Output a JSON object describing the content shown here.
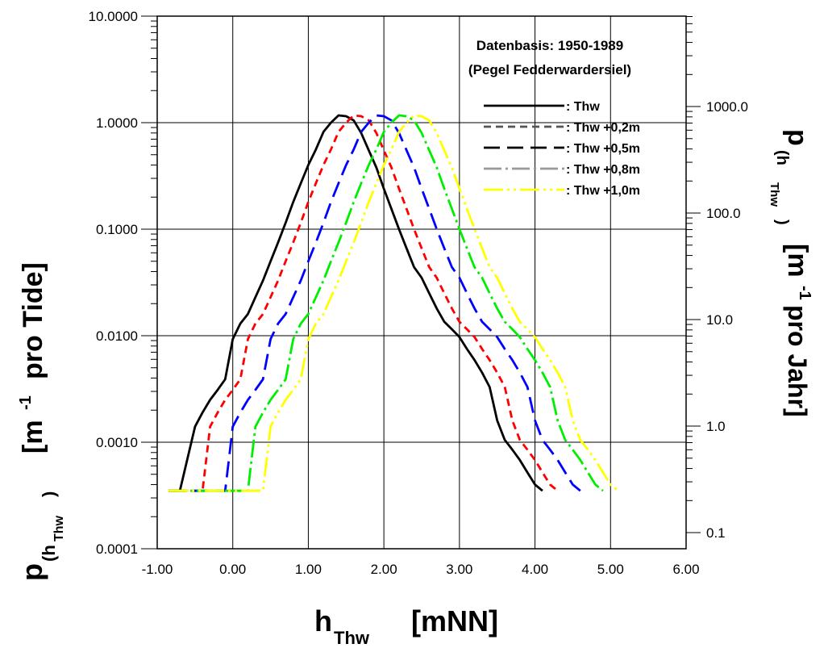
{
  "chart_data": {
    "type": "line",
    "annotation": [
      "Datenbasis: 1950-1989",
      "(Pegel Fedderwardersiel)"
    ],
    "xlabel": "h",
    "xlabel_sub": "Thw",
    "xlabel_unit": "[mNN]",
    "ylabel": "p",
    "ylabel_sub": "(h",
    "ylabel_sub2": "Thw",
    "ylabel_close": ")",
    "ylabel_unit": "[m",
    "ylabel_exp": "-1",
    "ylabel_tail": "pro Tide]",
    "y2label": "p",
    "y2label_sub": "(h",
    "y2label_sub2": "Thw",
    "y2label_close": ")",
    "y2label_unit": "[m",
    "y2label_exp": "-1",
    "y2label_tail": "pro Jahr]",
    "xlim": [
      -1.0,
      6.0
    ],
    "ylim": [
      0.0001,
      10.0
    ],
    "yscale": "log",
    "grid": true,
    "legend_position": "top-right",
    "x_ticks": [
      "-1.00",
      "0.00",
      "1.00",
      "2.00",
      "3.00",
      "4.00",
      "5.00",
      "6.00"
    ],
    "y_ticks": [
      "0.0001",
      "0.0010",
      "0.0100",
      "0.1000",
      "1.0000",
      "10.0000"
    ],
    "y2_ticks": [
      {
        "label": "0.1",
        "value": 0.1
      },
      {
        "label": "1.0",
        "value": 1.0
      },
      {
        "label": "10.0",
        "value": 10.0
      },
      {
        "label": "100.0",
        "value": 100.0
      },
      {
        "label": "1000.0",
        "value": 1000.0
      }
    ],
    "series": [
      {
        "name": ": Thw",
        "color": "#000000",
        "legend_color": "#000000",
        "dash": "none",
        "x": [
          -0.85,
          -0.7,
          -0.5,
          -0.4,
          -0.3,
          -0.2,
          -0.1,
          0.0,
          0.1,
          0.2,
          0.3,
          0.4,
          0.5,
          0.6,
          0.7,
          0.8,
          0.9,
          1.0,
          1.1,
          1.2,
          1.3,
          1.4,
          1.5,
          1.6,
          1.7,
          1.8,
          1.9,
          2.0,
          2.1,
          2.2,
          2.3,
          2.4,
          2.5,
          2.6,
          2.7,
          2.8,
          2.9,
          3.0,
          3.1,
          3.2,
          3.3,
          3.4,
          3.5,
          3.6,
          3.7,
          3.8,
          3.9,
          4.0,
          4.1
        ],
        "y": [
          0.00035,
          0.00035,
          0.0014,
          0.0019,
          0.0025,
          0.0031,
          0.0039,
          0.0093,
          0.013,
          0.016,
          0.023,
          0.033,
          0.05,
          0.075,
          0.115,
          0.18,
          0.27,
          0.4,
          0.56,
          0.82,
          1.0,
          1.17,
          1.15,
          1.05,
          0.8,
          0.55,
          0.38,
          0.24,
          0.155,
          0.1,
          0.066,
          0.044,
          0.035,
          0.025,
          0.018,
          0.0135,
          0.0115,
          0.0097,
          0.0075,
          0.0059,
          0.0045,
          0.0033,
          0.0016,
          0.00105,
          0.00085,
          0.00068,
          0.00052,
          0.0004,
          0.00035
        ]
      },
      {
        "name": ": Thw +0,2m",
        "color": "#ff0000",
        "legend_color": "#555555",
        "dash": "9 6",
        "x": [
          -0.85,
          -0.7,
          -0.5,
          -0.4,
          -0.3,
          -0.2,
          -0.1,
          0.0,
          0.1,
          0.2,
          0.3,
          0.4,
          0.5,
          0.6,
          0.7,
          0.8,
          0.9,
          1.0,
          1.1,
          1.2,
          1.3,
          1.4,
          1.5,
          1.6,
          1.7,
          1.8,
          1.9,
          2.0,
          2.1,
          2.2,
          2.3,
          2.4,
          2.5,
          2.6,
          2.7,
          2.8,
          2.9,
          3.0,
          3.1,
          3.2,
          3.3,
          3.4,
          3.5,
          3.6,
          3.7,
          3.8,
          3.9,
          4.0,
          4.1,
          4.2,
          4.3
        ],
        "y": [
          0.00035,
          0.00035,
          0.00035,
          0.00035,
          0.0014,
          0.0019,
          0.0025,
          0.0031,
          0.0039,
          0.0093,
          0.013,
          0.016,
          0.023,
          0.033,
          0.05,
          0.075,
          0.115,
          0.18,
          0.27,
          0.4,
          0.56,
          0.82,
          1.0,
          1.17,
          1.15,
          1.05,
          0.8,
          0.55,
          0.38,
          0.24,
          0.155,
          0.1,
          0.066,
          0.044,
          0.035,
          0.025,
          0.018,
          0.0135,
          0.0115,
          0.0097,
          0.0075,
          0.0059,
          0.0045,
          0.0033,
          0.0016,
          0.00105,
          0.00085,
          0.00068,
          0.00052,
          0.0004,
          0.00035
        ]
      },
      {
        "name": ": Thw +0,5m",
        "color": "#0000ff",
        "legend_color": "#000000",
        "dash": "20 9",
        "x": [
          -0.85,
          -0.7,
          -0.5,
          -0.4,
          -0.3,
          -0.2,
          -0.1,
          0.0,
          0.1,
          0.2,
          0.3,
          0.4,
          0.5,
          0.6,
          0.7,
          0.8,
          0.9,
          1.0,
          1.1,
          1.2,
          1.3,
          1.4,
          1.5,
          1.6,
          1.7,
          1.8,
          1.9,
          2.0,
          2.1,
          2.2,
          2.3,
          2.4,
          2.5,
          2.6,
          2.7,
          2.8,
          2.9,
          3.0,
          3.1,
          3.2,
          3.3,
          3.4,
          3.5,
          3.6,
          3.7,
          3.8,
          3.9,
          4.0,
          4.1,
          4.2,
          4.3,
          4.4,
          4.5,
          4.6
        ],
        "y": [
          0.00035,
          0.00035,
          0.00035,
          0.00035,
          0.00035,
          0.00035,
          0.00035,
          0.0014,
          0.0019,
          0.0025,
          0.0031,
          0.0039,
          0.0093,
          0.013,
          0.016,
          0.023,
          0.033,
          0.05,
          0.075,
          0.115,
          0.18,
          0.27,
          0.4,
          0.56,
          0.82,
          1.0,
          1.17,
          1.15,
          1.05,
          0.8,
          0.55,
          0.38,
          0.24,
          0.155,
          0.1,
          0.066,
          0.044,
          0.035,
          0.025,
          0.018,
          0.0135,
          0.0115,
          0.0097,
          0.0075,
          0.0059,
          0.0045,
          0.0033,
          0.0016,
          0.00105,
          0.00085,
          0.00068,
          0.00052,
          0.0004,
          0.00035
        ]
      },
      {
        "name": ": Thw +0,8m",
        "color": "#00ee00",
        "legend_color": "#999999",
        "dash": "22 5 3 5",
        "x": [
          -0.85,
          -0.7,
          -0.5,
          -0.4,
          -0.3,
          -0.2,
          -0.1,
          0.0,
          0.1,
          0.2,
          0.3,
          0.4,
          0.5,
          0.6,
          0.7,
          0.8,
          0.9,
          1.0,
          1.1,
          1.2,
          1.3,
          1.4,
          1.5,
          1.6,
          1.7,
          1.8,
          1.9,
          2.0,
          2.1,
          2.2,
          2.3,
          2.4,
          2.5,
          2.6,
          2.7,
          2.8,
          2.9,
          3.0,
          3.1,
          3.2,
          3.3,
          3.4,
          3.5,
          3.6,
          3.7,
          3.8,
          3.9,
          4.0,
          4.1,
          4.2,
          4.3,
          4.4,
          4.5,
          4.6,
          4.7,
          4.8,
          4.9
        ],
        "y": [
          0.00035,
          0.00035,
          0.00035,
          0.00035,
          0.00035,
          0.00035,
          0.00035,
          0.00035,
          0.00035,
          0.00035,
          0.0014,
          0.0019,
          0.0025,
          0.0031,
          0.0039,
          0.0093,
          0.013,
          0.016,
          0.023,
          0.033,
          0.05,
          0.075,
          0.115,
          0.18,
          0.27,
          0.4,
          0.56,
          0.82,
          1.0,
          1.17,
          1.15,
          1.05,
          0.8,
          0.55,
          0.38,
          0.24,
          0.155,
          0.1,
          0.066,
          0.044,
          0.035,
          0.025,
          0.018,
          0.0135,
          0.0115,
          0.0097,
          0.0075,
          0.0059,
          0.0045,
          0.0033,
          0.0016,
          0.00105,
          0.00085,
          0.00068,
          0.00052,
          0.0004,
          0.00035
        ]
      },
      {
        "name": ": Thw +1,0m",
        "color": "#ffff00",
        "legend_color": "#ffff00",
        "dash": "24 5 3 5 3 5",
        "x": [
          -0.85,
          -0.7,
          -0.5,
          -0.4,
          -0.3,
          -0.2,
          -0.1,
          0.0,
          0.1,
          0.2,
          0.3,
          0.4,
          0.5,
          0.6,
          0.7,
          0.8,
          0.9,
          1.0,
          1.1,
          1.2,
          1.3,
          1.4,
          1.5,
          1.6,
          1.7,
          1.8,
          1.9,
          2.0,
          2.1,
          2.2,
          2.3,
          2.4,
          2.5,
          2.6,
          2.7,
          2.8,
          2.9,
          3.0,
          3.1,
          3.2,
          3.3,
          3.4,
          3.5,
          3.6,
          3.7,
          3.8,
          3.9,
          4.0,
          4.1,
          4.2,
          4.3,
          4.4,
          4.5,
          4.6,
          4.7,
          4.8,
          4.9,
          5.0,
          5.1
        ],
        "y": [
          0.00035,
          0.00035,
          0.00035,
          0.00035,
          0.00035,
          0.00035,
          0.00035,
          0.00035,
          0.00035,
          0.00035,
          0.00035,
          0.00035,
          0.0014,
          0.0019,
          0.0025,
          0.0031,
          0.0039,
          0.0093,
          0.013,
          0.016,
          0.023,
          0.033,
          0.05,
          0.075,
          0.115,
          0.18,
          0.27,
          0.4,
          0.56,
          0.82,
          1.0,
          1.17,
          1.15,
          1.05,
          0.8,
          0.55,
          0.38,
          0.24,
          0.155,
          0.1,
          0.066,
          0.044,
          0.035,
          0.025,
          0.018,
          0.0135,
          0.0115,
          0.0097,
          0.0075,
          0.0059,
          0.0045,
          0.0033,
          0.0016,
          0.00105,
          0.00085,
          0.00068,
          0.00052,
          0.0004,
          0.00035
        ]
      }
    ]
  }
}
